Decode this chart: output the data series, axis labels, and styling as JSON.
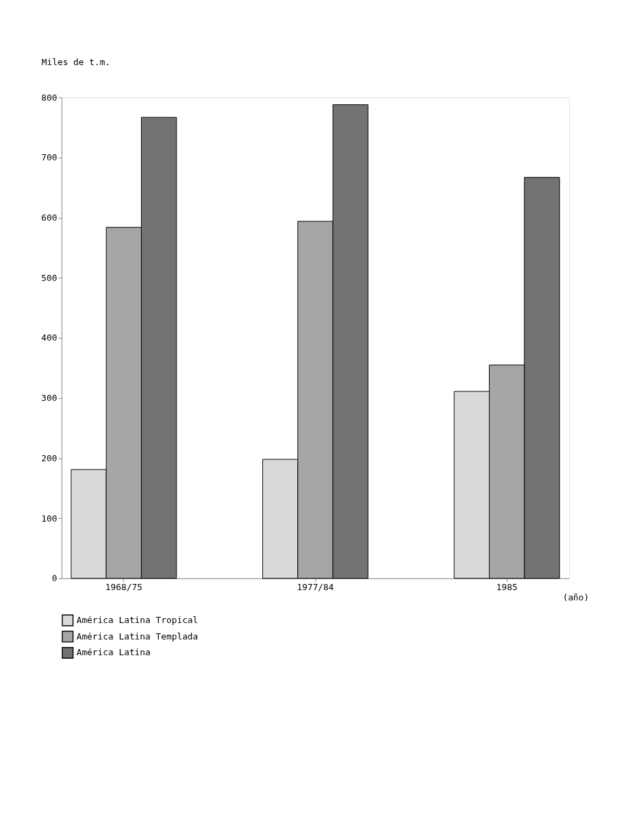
{
  "chart_data": {
    "type": "bar",
    "xlabel": "(año)",
    "ylabel": "Miles de t.m.",
    "categories": [
      "1968/75",
      "1977/84",
      "1985"
    ],
    "series": [
      {
        "name": "América Latina Tropical",
        "color": "#d9d9d9",
        "values": [
          181,
          198,
          311
        ]
      },
      {
        "name": "América Latina Templada",
        "color": "#a6a6a6",
        "values": [
          584,
          594,
          355
        ]
      },
      {
        "name": "América Latina",
        "color": "#737373",
        "values": [
          767,
          788,
          667
        ]
      }
    ],
    "ylim": [
      0,
      800
    ],
    "yticks": [
      0,
      100,
      200,
      300,
      400,
      500,
      600,
      700,
      800
    ],
    "grid": false,
    "legend": "bottom"
  }
}
